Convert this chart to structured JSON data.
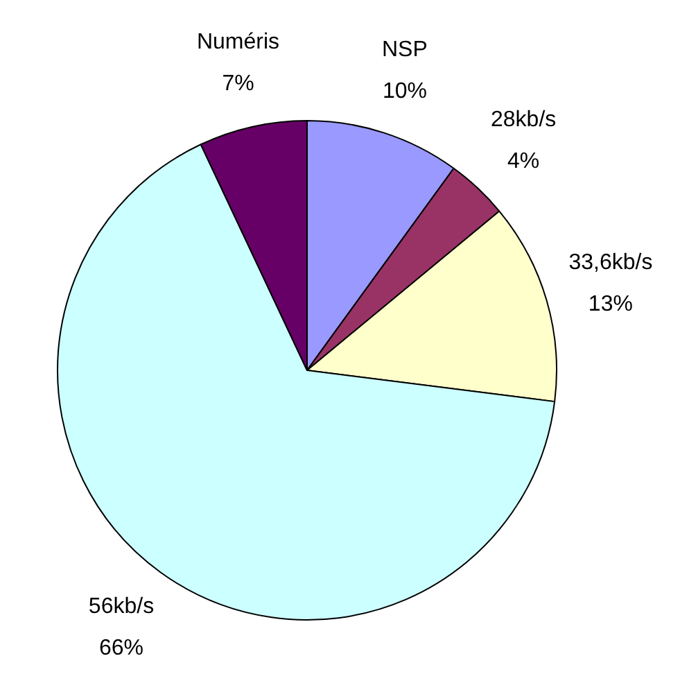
{
  "chart_data": {
    "type": "pie",
    "categories": [
      "NSP",
      "28kb/s",
      "33,6kb/s",
      "56kb/s",
      "Numéris"
    ],
    "values": [
      10,
      4,
      13,
      66,
      7
    ],
    "colors": [
      "#9999ff",
      "#993366",
      "#ffffcc",
      "#ccffff",
      "#660066"
    ],
    "value_labels": [
      "10%",
      "4%",
      "13%",
      "66%",
      "7%"
    ],
    "legend": false
  }
}
